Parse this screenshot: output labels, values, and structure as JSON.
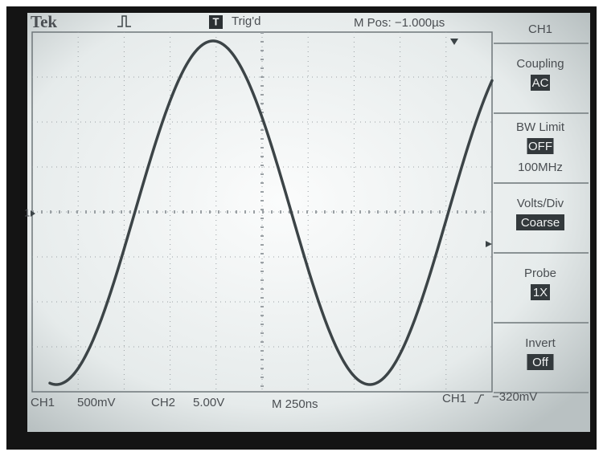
{
  "header": {
    "brand": "Tek",
    "trigger_icon": "T",
    "trigger_status": "Trig'd",
    "position": "M Pos: −1.000µs"
  },
  "channel_marker": "1",
  "menu": {
    "title": "CH1",
    "items": [
      {
        "label": "Coupling",
        "value": "AC"
      },
      {
        "label": "BW Limit",
        "value": "OFF",
        "extra": "100MHz"
      },
      {
        "label": "Volts/Div",
        "value": "Coarse"
      },
      {
        "label": "Probe",
        "value": "1X"
      },
      {
        "label": "Invert",
        "value": "Off"
      }
    ]
  },
  "footer": {
    "ch1_label": "CH1",
    "ch1_scale": "500mV",
    "ch2_label": "CH2",
    "ch2_scale": "5.00V",
    "timebase": "M 250ns",
    "trigger_source": "CH1",
    "trigger_level": "−320mV"
  }
}
